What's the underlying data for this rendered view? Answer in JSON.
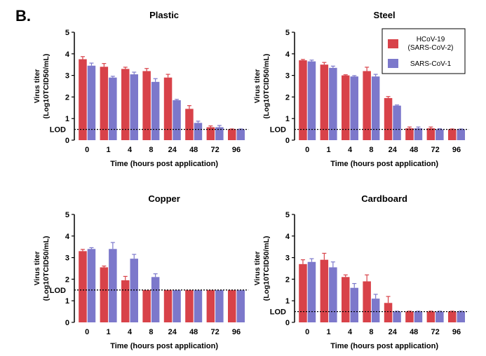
{
  "figure_label": "B.",
  "colors": {
    "hcov19": "#d84249",
    "sarscov1": "#7c78cb",
    "lod_line": "#000000"
  },
  "legend": {
    "items": [
      {
        "series": "hcov19",
        "line1": "HCoV-19",
        "line2": "(SARS-CoV-2)"
      },
      {
        "series": "sarscov1",
        "line1": "SARS-CoV-1",
        "line2": ""
      }
    ]
  },
  "chart_data": [
    {
      "type": "bar",
      "title": "Plastic",
      "xlabel": "Time (hours post application)",
      "ylabel_line1": "Virus titer",
      "ylabel_line2": "(Log10TCID50/mL)",
      "ylim": [
        0,
        5
      ],
      "yticks": [
        "0",
        "1",
        "2",
        "3",
        "4",
        "5"
      ],
      "lod_label": "LOD",
      "lod": 0.5,
      "categories": [
        "0",
        "1",
        "4",
        "8",
        "24",
        "48",
        "72",
        "96"
      ],
      "series": [
        {
          "name": "HCoV-19 (SARS-CoV-2)",
          "key": "hcov19",
          "values": [
            3.75,
            3.4,
            3.3,
            3.2,
            2.9,
            1.45,
            0.6,
            0.5
          ],
          "errors": [
            0.12,
            0.15,
            0.08,
            0.12,
            0.15,
            0.15,
            0.06,
            0.02
          ]
        },
        {
          "name": "SARS-CoV-1",
          "key": "sarscov1",
          "values": [
            3.45,
            2.9,
            3.05,
            2.7,
            1.85,
            0.8,
            0.6,
            0.5
          ],
          "errors": [
            0.12,
            0.06,
            0.1,
            0.15,
            0.04,
            0.08,
            0.08,
            0.02
          ]
        }
      ]
    },
    {
      "type": "bar",
      "title": "Steel",
      "xlabel": "Time (hours post application)",
      "ylabel_line1": "Virus titer",
      "ylabel_line2": "(Log10TCID50/mL)",
      "ylim": [
        0,
        5
      ],
      "yticks": [
        "0",
        "1",
        "2",
        "3",
        "4",
        "5"
      ],
      "lod_label": "LOD",
      "lod": 0.5,
      "categories": [
        "0",
        "1",
        "4",
        "8",
        "24",
        "48",
        "72",
        "96"
      ],
      "series": [
        {
          "name": "HCoV-19 (SARS-CoV-2)",
          "key": "hcov19",
          "values": [
            3.7,
            3.5,
            3.0,
            3.2,
            1.95,
            0.55,
            0.55,
            0.5
          ],
          "errors": [
            0.04,
            0.1,
            0.03,
            0.18,
            0.07,
            0.06,
            0.06,
            0.02
          ]
        },
        {
          "name": "SARS-CoV-1",
          "key": "sarscov1",
          "values": [
            3.65,
            3.35,
            2.95,
            2.95,
            1.6,
            0.55,
            0.5,
            0.5
          ],
          "errors": [
            0.06,
            0.08,
            0.04,
            0.1,
            0.03,
            0.06,
            0.03,
            0.02
          ]
        }
      ]
    },
    {
      "type": "bar",
      "title": "Copper",
      "xlabel": "Time (hours post application)",
      "ylabel_line1": "Virus titer",
      "ylabel_line2": "(Log10TCID50/mL)",
      "ylim": [
        0,
        5
      ],
      "yticks": [
        "0",
        "1",
        "2",
        "3",
        "4",
        "5"
      ],
      "lod_label": "LOD",
      "lod": 1.5,
      "categories": [
        "0",
        "1",
        "4",
        "8",
        "24",
        "48",
        "72",
        "96"
      ],
      "series": [
        {
          "name": "HCoV-19 (SARS-CoV-2)",
          "key": "hcov19",
          "values": [
            3.3,
            2.55,
            1.95,
            1.5,
            1.5,
            1.5,
            1.5,
            1.5
          ],
          "errors": [
            0.08,
            0.06,
            0.18,
            0.0,
            0.0,
            0.0,
            0.0,
            0.0
          ]
        },
        {
          "name": "SARS-CoV-1",
          "key": "sarscov1",
          "values": [
            3.4,
            3.4,
            2.95,
            2.1,
            1.5,
            1.5,
            1.5,
            1.5
          ],
          "errors": [
            0.06,
            0.3,
            0.2,
            0.15,
            0.0,
            0.0,
            0.0,
            0.0
          ]
        }
      ]
    },
    {
      "type": "bar",
      "title": "Cardboard",
      "xlabel": "Time (hours post application)",
      "ylabel_line1": "Virus titer",
      "ylabel_line2": "(Log10TCID50/mL)",
      "ylim": [
        0,
        5
      ],
      "yticks": [
        "0",
        "1",
        "2",
        "3",
        "4",
        "5"
      ],
      "lod_label": "LOD",
      "lod": 0.5,
      "categories": [
        "0",
        "1",
        "4",
        "8",
        "24",
        "48",
        "72",
        "96"
      ],
      "series": [
        {
          "name": "HCoV-19 (SARS-CoV-2)",
          "key": "hcov19",
          "values": [
            2.7,
            2.9,
            2.1,
            1.9,
            0.9,
            0.5,
            0.5,
            0.5
          ],
          "errors": [
            0.2,
            0.3,
            0.1,
            0.3,
            0.3,
            0.02,
            0.02,
            0.02
          ]
        },
        {
          "name": "SARS-CoV-1",
          "key": "sarscov1",
          "values": [
            2.8,
            2.55,
            1.6,
            1.1,
            0.5,
            0.5,
            0.5,
            0.5
          ],
          "errors": [
            0.15,
            0.25,
            0.2,
            0.2,
            0.02,
            0.02,
            0.02,
            0.02
          ]
        }
      ]
    }
  ]
}
